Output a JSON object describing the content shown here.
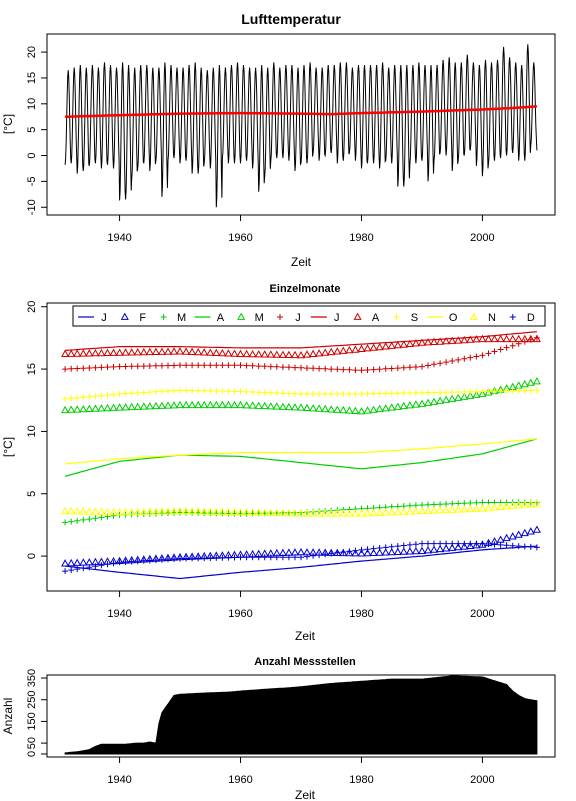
{
  "chart_data": [
    {
      "type": "line",
      "title": "Lufttemperatur",
      "xlabel": "Zeit",
      "ylabel": "[°C]",
      "xlim": [
        1928,
        2012
      ],
      "ylim": [
        -11.5,
        23.5
      ],
      "xticks": [
        "1940",
        "1960",
        "1980",
        "2000"
      ],
      "yticks": [
        "-10",
        "-5",
        "0",
        "5",
        "10",
        "15",
        "20"
      ],
      "series": [
        {
          "kind": "monthly",
          "color": "#000000",
          "x_start": 1931,
          "x_end": 2009,
          "annual_min": [
            -1.8,
            -1.5,
            -3.5,
            -3.0,
            -2.0,
            -1.5,
            -2.5,
            -1.8,
            -2.5,
            -8.7,
            -8.5,
            -4.5,
            -2.5,
            -1.5,
            -3.0,
            -1.0,
            -8.0,
            -1.0,
            -0.5,
            -1.5,
            -1.0,
            -3.5,
            -3.5,
            -1.5,
            -2.5,
            -10.0,
            -0.5,
            -1.5,
            -1.5,
            -1.5,
            -1.0,
            -2.5,
            -7.0,
            -4.0,
            -1.0,
            -0.5,
            -0.5,
            -1.0,
            -3.0,
            -1.5,
            -1.5,
            0.5,
            -1.0,
            0.0,
            0.5,
            -1.5,
            -1.0,
            0.5,
            -1.0,
            -2.5,
            -1.5,
            -1.5,
            -2.5,
            -1.0,
            -1.5,
            -6.0,
            -6.0,
            -1.5,
            -1.5,
            -1.0,
            -5.0,
            -1.0,
            0.5,
            0.0,
            -3.0,
            -1.0,
            0.0,
            1.0,
            -2.0,
            -4.0,
            -1.5,
            -1.0,
            -0.5,
            0.0,
            0.5,
            -1.0,
            -1.0,
            2.0,
            1.0
          ],
          "annual_max": [
            16.5,
            17.0,
            17.5,
            17.0,
            17.5,
            17.0,
            18.0,
            17.5,
            17.0,
            18.0,
            17.5,
            17.0,
            17.5,
            17.5,
            17.0,
            17.0,
            18.0,
            17.5,
            17.0,
            17.0,
            17.5,
            18.0,
            17.0,
            16.5,
            17.0,
            17.5,
            17.0,
            17.5,
            18.0,
            17.5,
            17.0,
            17.0,
            17.5,
            17.0,
            18.0,
            17.0,
            17.5,
            17.5,
            17.0,
            17.5,
            18.0,
            17.0,
            17.0,
            17.5,
            17.5,
            18.0,
            18.0,
            17.0,
            17.5,
            17.5,
            17.5,
            17.5,
            18.0,
            17.0,
            17.5,
            17.5,
            17.5,
            17.5,
            18.0,
            17.5,
            17.5,
            17.5,
            18.5,
            19.0,
            18.0,
            18.0,
            19.5,
            18.0,
            17.5,
            18.5,
            18.0,
            18.5,
            21.0,
            19.0,
            18.0,
            17.5,
            21.5,
            18.0,
            17.5
          ]
        },
        {
          "kind": "trend",
          "color": "#ff0000",
          "x": [
            1931,
            1940,
            1950,
            1960,
            1970,
            1975,
            1980,
            1990,
            2000,
            2005,
            2009
          ],
          "y": [
            7.5,
            7.8,
            8.1,
            8.2,
            8.1,
            8.0,
            8.2,
            8.5,
            8.9,
            9.2,
            9.5
          ]
        }
      ]
    },
    {
      "type": "line",
      "title": "Einzelmonate",
      "xlabel": "Zeit",
      "ylabel": "[°C]",
      "xlim": [
        1928,
        2012
      ],
      "ylim": [
        -2.8,
        20.3
      ],
      "xticks": [
        "1940",
        "1960",
        "1980",
        "2000"
      ],
      "yticks": [
        "0",
        "5",
        "10",
        "15",
        "20"
      ],
      "legend": {
        "position": "top",
        "entries": [
          {
            "name": "J",
            "color": "#0000cd",
            "style": "line"
          },
          {
            "name": "F",
            "color": "#0000cd",
            "style": "triangle"
          },
          {
            "name": "M",
            "color": "#00cd00",
            "style": "plus"
          },
          {
            "name": "A",
            "color": "#00cd00",
            "style": "line"
          },
          {
            "name": "M",
            "color": "#00cd00",
            "style": "triangle"
          },
          {
            "name": "J",
            "color": "#cd0000",
            "style": "plus"
          },
          {
            "name": "J",
            "color": "#cd0000",
            "style": "line"
          },
          {
            "name": "A",
            "color": "#cd0000",
            "style": "triangle"
          },
          {
            "name": "S",
            "color": "#ffff00",
            "style": "plus"
          },
          {
            "name": "O",
            "color": "#ffff00",
            "style": "line"
          },
          {
            "name": "N",
            "color": "#ffff00",
            "style": "triangle"
          },
          {
            "name": "D",
            "color": "#0000cd",
            "style": "plus"
          }
        ]
      },
      "x": [
        1931,
        1940,
        1950,
        1960,
        1970,
        1980,
        1990,
        2000,
        2009
      ],
      "series": [
        {
          "name": "J",
          "values": [
            -0.8,
            -1.3,
            -1.8,
            -1.3,
            -0.9,
            -0.4,
            0.0,
            0.5,
            0.8
          ],
          "color": "#0000cd",
          "style": "line"
        },
        {
          "name": "F",
          "values": [
            -0.6,
            -0.4,
            -0.1,
            0.1,
            0.3,
            0.2,
            0.4,
            0.9,
            2.1
          ],
          "color": "#0000cd",
          "style": "triangle"
        },
        {
          "name": "M",
          "values": [
            2.7,
            3.3,
            3.5,
            3.4,
            3.5,
            3.8,
            4.1,
            4.3,
            4.3
          ],
          "color": "#00cd00",
          "style": "plus"
        },
        {
          "name": "A",
          "values": [
            6.4,
            7.6,
            8.1,
            8.0,
            7.5,
            7.0,
            7.5,
            8.2,
            9.4
          ],
          "color": "#00cd00",
          "style": "line"
        },
        {
          "name": "M",
          "values": [
            11.7,
            11.9,
            12.1,
            12.1,
            11.9,
            11.6,
            12.2,
            13.0,
            14.0
          ],
          "color": "#00cd00",
          "style": "triangle"
        },
        {
          "name": "J",
          "values": [
            15.0,
            15.2,
            15.3,
            15.3,
            15.1,
            14.9,
            15.2,
            16.1,
            17.5
          ],
          "color": "#cd0000",
          "style": "plus"
        },
        {
          "name": "J",
          "values": [
            16.5,
            16.8,
            16.8,
            16.7,
            16.7,
            17.0,
            17.3,
            17.6,
            18.0
          ],
          "color": "#cd0000",
          "style": "line"
        },
        {
          "name": "A",
          "values": [
            16.2,
            16.3,
            16.4,
            16.2,
            16.1,
            16.6,
            17.1,
            17.4,
            17.4
          ],
          "color": "#cd0000",
          "style": "triangle"
        },
        {
          "name": "S",
          "values": [
            12.6,
            13.0,
            13.3,
            13.2,
            13.0,
            13.0,
            13.1,
            13.2,
            13.3
          ],
          "color": "#ffff00",
          "style": "plus"
        },
        {
          "name": "O",
          "values": [
            7.4,
            7.8,
            8.1,
            8.3,
            8.3,
            8.3,
            8.6,
            9.0,
            9.4
          ],
          "color": "#ffff00",
          "style": "line"
        },
        {
          "name": "N",
          "values": [
            3.6,
            3.5,
            3.6,
            3.5,
            3.4,
            3.4,
            3.6,
            3.8,
            4.2
          ],
          "color": "#ffff00",
          "style": "triangle"
        },
        {
          "name": "D",
          "values": [
            -1.2,
            -0.5,
            -0.2,
            -0.1,
            -0.1,
            0.5,
            1.0,
            1.0,
            0.7
          ],
          "color": "#0000cd",
          "style": "plus"
        }
      ]
    },
    {
      "type": "area",
      "title": "Anzahl Messstellen",
      "xlabel": "Zeit",
      "ylabel": "Anzahl",
      "xlim": [
        1928,
        2012
      ],
      "ylim": [
        -14,
        364
      ],
      "xticks": [
        "1940",
        "1960",
        "1980",
        "2000"
      ],
      "yticks": [
        "0",
        "50",
        "150",
        "250",
        "350"
      ],
      "x": [
        1931,
        1932,
        1933,
        1934,
        1935,
        1936,
        1937,
        1938,
        1939,
        1940,
        1941,
        1942,
        1943,
        1944,
        1945,
        1946,
        1946.5,
        1947,
        1948,
        1949,
        1950,
        1952,
        1955,
        1958,
        1960,
        1965,
        1968,
        1970,
        1975,
        1980,
        1985,
        1990,
        1995,
        2000,
        2004,
        2005,
        2006,
        2007,
        2008,
        2009
      ],
      "values": [
        5,
        8,
        10,
        15,
        20,
        35,
        45,
        45,
        45,
        45,
        45,
        48,
        50,
        50,
        55,
        50,
        140,
        190,
        230,
        270,
        275,
        278,
        282,
        285,
        290,
        300,
        305,
        310,
        325,
        335,
        345,
        345,
        360,
        355,
        320,
        290,
        270,
        255,
        250,
        245
      ]
    }
  ]
}
